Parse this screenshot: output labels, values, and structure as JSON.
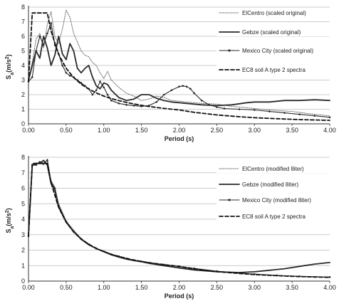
{
  "chart_data": [
    {
      "type": "line",
      "xlabel": "Period (s)",
      "ylabel": "S",
      "ylabel_sub": "a",
      "ylabel_unit_pre": "(m/s",
      "ylabel_unit_sup": "2",
      "ylabel_unit_post": ")",
      "xlim": [
        0,
        4
      ],
      "ylim": [
        0,
        8
      ],
      "xticks": [
        "0.00",
        "0.50",
        "1.00",
        "1.50",
        "2.00",
        "2.50",
        "3.00",
        "3.50",
        "4.00"
      ],
      "yticks": [
        "0",
        "1",
        "2",
        "3",
        "4",
        "5",
        "6",
        "7",
        "8"
      ],
      "grid": "horizontal",
      "legend_position": "top-right",
      "series": [
        {
          "name": "ElCentro (scaled original)",
          "style": "dotted",
          "color": "#666666",
          "x": [
            0,
            0.05,
            0.1,
            0.15,
            0.2,
            0.25,
            0.3,
            0.35,
            0.4,
            0.45,
            0.5,
            0.55,
            0.6,
            0.65,
            0.7,
            0.75,
            0.8,
            0.85,
            0.9,
            0.95,
            1.0,
            1.05,
            1.1,
            1.2,
            1.3,
            1.4,
            1.5,
            1.6,
            1.7,
            1.8,
            1.9,
            2.0,
            2.1,
            2.2,
            2.3,
            2.5,
            2.7,
            3.0,
            3.2,
            3.5,
            3.8,
            4.0
          ],
          "y": [
            3.0,
            4.2,
            5.8,
            6.2,
            5.2,
            6.8,
            7.7,
            6.0,
            5.5,
            6.5,
            7.8,
            7.3,
            6.2,
            5.6,
            5.0,
            4.7,
            4.6,
            4.2,
            4.0,
            3.5,
            3.1,
            3.6,
            3.0,
            2.5,
            2.1,
            1.9,
            1.6,
            1.7,
            1.9,
            1.8,
            1.6,
            1.55,
            1.5,
            1.45,
            1.4,
            1.35,
            1.2,
            1.05,
            0.95,
            0.85,
            0.65,
            0.55
          ]
        },
        {
          "name": "Gebze (scaled original)",
          "style": "solid-thick",
          "color": "#2a2a2a",
          "x": [
            0,
            0.05,
            0.1,
            0.15,
            0.2,
            0.25,
            0.3,
            0.35,
            0.4,
            0.45,
            0.5,
            0.55,
            0.6,
            0.65,
            0.7,
            0.75,
            0.8,
            0.85,
            0.9,
            0.95,
            1.0,
            1.05,
            1.1,
            1.2,
            1.3,
            1.4,
            1.5,
            1.6,
            1.7,
            1.8,
            1.9,
            2.0,
            2.1,
            2.2,
            2.3,
            2.5,
            2.7,
            2.9,
            3.0,
            3.2,
            3.4,
            3.6,
            3.8,
            4.0
          ],
          "y": [
            3.0,
            4.0,
            5.0,
            4.5,
            6.0,
            5.2,
            4.0,
            4.7,
            6.0,
            4.8,
            4.4,
            5.5,
            5.0,
            3.8,
            3.5,
            3.8,
            4.0,
            3.2,
            2.6,
            2.4,
            2.8,
            2.7,
            2.3,
            1.8,
            1.6,
            1.7,
            2.0,
            2.0,
            1.75,
            1.6,
            1.5,
            1.45,
            1.4,
            1.35,
            1.3,
            1.25,
            1.3,
            1.45,
            1.5,
            1.5,
            1.6,
            1.6,
            1.65,
            1.6
          ]
        },
        {
          "name": "Mexico City (scaled original)",
          "style": "solid-marker",
          "color": "#2a2a2a",
          "x": [
            0,
            0.05,
            0.1,
            0.15,
            0.2,
            0.25,
            0.3,
            0.35,
            0.4,
            0.45,
            0.5,
            0.55,
            0.6,
            0.65,
            0.7,
            0.75,
            0.8,
            0.85,
            0.9,
            0.95,
            1.0,
            1.05,
            1.1,
            1.2,
            1.3,
            1.4,
            1.5,
            1.6,
            1.7,
            1.8,
            1.9,
            2.0,
            2.05,
            2.1,
            2.15,
            2.2,
            2.3,
            2.4,
            2.5,
            2.6,
            2.8,
            3.0,
            3.2,
            3.4,
            3.6,
            3.8,
            4.0
          ],
          "y": [
            2.9,
            3.2,
            5.0,
            6.0,
            5.4,
            6.2,
            6.9,
            5.4,
            4.8,
            4.0,
            3.5,
            3.3,
            3.2,
            3.0,
            2.8,
            2.6,
            2.4,
            2.0,
            2.3,
            2.9,
            2.5,
            2.0,
            1.6,
            1.4,
            1.3,
            1.25,
            1.2,
            1.25,
            1.5,
            2.0,
            2.3,
            2.55,
            2.6,
            2.55,
            2.4,
            2.1,
            1.6,
            1.3,
            1.15,
            1.05,
            1.0,
            0.95,
            0.85,
            0.75,
            0.65,
            0.55,
            0.45
          ]
        },
        {
          "name": "EC8 soil A type 2 spectra",
          "style": "dashed-thick",
          "color": "#111111",
          "x": [
            0,
            0.05,
            0.15,
            0.25,
            0.3,
            0.4,
            0.5,
            0.6,
            0.7,
            0.8,
            0.9,
            1.0,
            1.1,
            1.2,
            1.3,
            1.4,
            1.5,
            1.6,
            1.8,
            2.0,
            2.2,
            2.5,
            2.8,
            3.0,
            3.3,
            3.6,
            4.0
          ],
          "y": [
            2.9,
            7.6,
            7.6,
            7.6,
            6.35,
            4.76,
            3.81,
            3.17,
            2.72,
            2.38,
            2.12,
            1.9,
            1.73,
            1.59,
            1.47,
            1.36,
            1.27,
            1.19,
            1.06,
            0.95,
            0.79,
            0.61,
            0.49,
            0.42,
            0.35,
            0.29,
            0.24
          ]
        }
      ]
    },
    {
      "type": "line",
      "xlabel": "Period (s)",
      "ylabel": "S",
      "ylabel_sub": "a",
      "ylabel_unit_pre": "(m/s",
      "ylabel_unit_sup": "2",
      "ylabel_unit_post": ")",
      "xlim": [
        0,
        4
      ],
      "ylim": [
        0,
        8
      ],
      "xticks": [
        "0.00",
        "0.50",
        "1.00",
        "1.50",
        "2.00",
        "2.50",
        "3.00",
        "3.50",
        "4.00"
      ],
      "yticks": [
        "0",
        "1",
        "2",
        "3",
        "4",
        "5",
        "6",
        "7",
        "8"
      ],
      "grid": "horizontal",
      "legend_position": "top-right",
      "series": [
        {
          "name": "ElCentro (modified 8iter)",
          "style": "dotted",
          "color": "#666666",
          "x": [
            0,
            0.05,
            0.1,
            0.15,
            0.2,
            0.25,
            0.3,
            0.35,
            0.4,
            0.5,
            0.6,
            0.7,
            0.8,
            0.9,
            1.0,
            1.1,
            1.2,
            1.3,
            1.4,
            1.5,
            1.6,
            1.8,
            2.0,
            2.2,
            2.5,
            2.8,
            3.0,
            3.3,
            3.6,
            4.0
          ],
          "y": [
            3.0,
            7.4,
            7.6,
            7.7,
            7.5,
            7.9,
            6.5,
            6.1,
            5.0,
            3.9,
            3.3,
            2.75,
            2.4,
            2.1,
            1.95,
            1.75,
            1.6,
            1.45,
            1.35,
            1.3,
            1.2,
            1.05,
            0.95,
            0.8,
            0.62,
            0.5,
            0.44,
            0.35,
            0.3,
            0.25
          ]
        },
        {
          "name": "Gebze (modified 8iter)",
          "style": "solid-thick",
          "color": "#2a2a2a",
          "x": [
            0,
            0.05,
            0.1,
            0.15,
            0.2,
            0.25,
            0.3,
            0.35,
            0.4,
            0.5,
            0.6,
            0.7,
            0.8,
            0.9,
            1.0,
            1.1,
            1.2,
            1.3,
            1.4,
            1.5,
            1.6,
            1.8,
            2.0,
            2.2,
            2.5,
            2.8,
            3.0,
            3.2,
            3.4,
            3.6,
            3.8,
            4.0
          ],
          "y": [
            3.0,
            7.5,
            7.6,
            7.6,
            7.8,
            7.5,
            6.3,
            5.9,
            4.8,
            3.8,
            3.2,
            2.7,
            2.35,
            2.1,
            1.9,
            1.7,
            1.55,
            1.42,
            1.33,
            1.25,
            1.15,
            1.0,
            0.85,
            0.72,
            0.6,
            0.55,
            0.6,
            0.7,
            0.8,
            0.95,
            1.1,
            1.2
          ]
        },
        {
          "name": "Mexico City (modified 8iter)",
          "style": "solid-marker",
          "color": "#2a2a2a",
          "x": [
            0,
            0.05,
            0.1,
            0.15,
            0.2,
            0.25,
            0.3,
            0.35,
            0.4,
            0.5,
            0.6,
            0.7,
            0.8,
            0.9,
            1.0,
            1.1,
            1.2,
            1.3,
            1.4,
            1.5,
            1.6,
            1.8,
            2.0,
            2.2,
            2.5,
            2.8,
            3.0,
            3.3,
            3.6,
            4.0
          ],
          "y": [
            2.9,
            7.5,
            7.5,
            7.7,
            7.6,
            7.8,
            6.4,
            6.0,
            4.9,
            3.85,
            3.2,
            2.72,
            2.38,
            2.1,
            1.92,
            1.72,
            1.6,
            1.45,
            1.35,
            1.27,
            1.19,
            1.06,
            0.95,
            0.82,
            0.64,
            0.52,
            0.45,
            0.37,
            0.31,
            0.26
          ]
        },
        {
          "name": "EC8 soil A type 2 spectra",
          "style": "dashed-thick",
          "color": "#111111",
          "x": [
            0,
            0.05,
            0.15,
            0.25,
            0.3,
            0.4,
            0.5,
            0.6,
            0.7,
            0.8,
            0.9,
            1.0,
            1.1,
            1.2,
            1.3,
            1.4,
            1.5,
            1.6,
            1.8,
            2.0,
            2.2,
            2.5,
            2.8,
            3.0,
            3.3,
            3.6,
            4.0
          ],
          "y": [
            2.9,
            7.6,
            7.6,
            7.6,
            6.35,
            4.76,
            3.81,
            3.17,
            2.72,
            2.38,
            2.12,
            1.9,
            1.73,
            1.59,
            1.47,
            1.36,
            1.27,
            1.19,
            1.06,
            0.95,
            0.79,
            0.61,
            0.49,
            0.42,
            0.35,
            0.29,
            0.24
          ]
        }
      ]
    }
  ]
}
